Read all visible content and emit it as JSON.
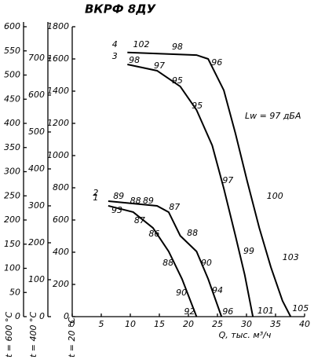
{
  "chart_data": {
    "type": "line",
    "title": "ВКРФ 8ДУ",
    "x_label": "Q, тыс. м³/ч",
    "y_label": "t = 20 °C",
    "annotation": "Lw = 97 дБА",
    "xlim": [
      0,
      40
    ],
    "xticks": [
      0,
      5,
      10,
      15,
      20,
      25,
      30,
      35,
      40
    ],
    "ylim": [
      0,
      1800
    ],
    "yticks": [
      0,
      200,
      400,
      600,
      800,
      1000,
      1200,
      1400,
      1600,
      1800
    ],
    "extra_axes": [
      {
        "label": "t = 600 °C",
        "ylim": [
          0,
          600
        ],
        "yticks": [
          0,
          50,
          100,
          150,
          200,
          250,
          300,
          350,
          400,
          450,
          500,
          550,
          600
        ]
      },
      {
        "label": "t = 400 °C",
        "ylim": [
          0,
          785
        ],
        "yticks": [
          0,
          100,
          200,
          300,
          400,
          500,
          600,
          700
        ]
      }
    ],
    "series": [
      {
        "name": "1",
        "color": "#000000",
        "x": [
          6.2,
          10.5,
          13.9,
          16.6,
          18.9,
          21.4
        ],
        "values": [
          688,
          649,
          551,
          405,
          234,
          0
        ],
        "point_labels": [
          {
            "x": 7.7,
            "y": 659,
            "label": 93
          },
          {
            "x": 11.6,
            "y": 595,
            "label": 87
          },
          {
            "x": 14.1,
            "y": 512,
            "label": 86
          },
          {
            "x": 16.5,
            "y": 332,
            "label": 88
          },
          {
            "x": 18.8,
            "y": 146,
            "label": 90
          },
          {
            "x": 20.2,
            "y": 29,
            "label": 92
          }
        ]
      },
      {
        "name": "2",
        "color": "#000000",
        "x": [
          6.2,
          14.6,
          16.6,
          18.6,
          21.4,
          23.4,
          25.7
        ],
        "values": [
          717,
          688,
          649,
          502,
          405,
          234,
          0
        ],
        "point_labels": [
          {
            "x": 8.0,
            "y": 746,
            "label": 89
          },
          {
            "x": 10.9,
            "y": 717,
            "label": 88
          },
          {
            "x": 13.1,
            "y": 717,
            "label": 89
          },
          {
            "x": 17.6,
            "y": 678,
            "label": 87
          },
          {
            "x": 20.7,
            "y": 517,
            "label": 88
          },
          {
            "x": 23.1,
            "y": 332,
            "label": 90
          },
          {
            "x": 25.0,
            "y": 161,
            "label": 94
          },
          {
            "x": 26.8,
            "y": 29,
            "label": 96
          }
        ]
      },
      {
        "name": "3",
        "color": "#000000",
        "x": [
          9.5,
          14.6,
          18.6,
          21.4,
          24.1,
          26.1,
          28.1,
          29.7,
          31.1
        ],
        "values": [
          1566,
          1527,
          1429,
          1283,
          1063,
          795,
          502,
          259,
          0
        ],
        "point_labels": [
          {
            "x": 10.7,
            "y": 1590,
            "label": 98
          },
          {
            "x": 15.0,
            "y": 1556,
            "label": 97
          },
          {
            "x": 18.1,
            "y": 1463,
            "label": 95
          },
          {
            "x": 21.5,
            "y": 1307,
            "label": 95
          },
          {
            "x": 26.8,
            "y": 844,
            "label": 97
          },
          {
            "x": 30.4,
            "y": 405,
            "label": 99
          },
          {
            "x": 33.3,
            "y": 34,
            "label": 101
          }
        ]
      },
      {
        "name": "4",
        "color": "#000000",
        "x": [
          9.5,
          21.4,
          23.4,
          26.1,
          28.1,
          30.1,
          32.2,
          34.2,
          36.2,
          37.6
        ],
        "values": [
          1640,
          1624,
          1600,
          1405,
          1137,
          844,
          551,
          307,
          98,
          0
        ],
        "point_labels": [
          {
            "x": 11.9,
            "y": 1688,
            "label": 102
          },
          {
            "x": 18.1,
            "y": 1673,
            "label": 98
          },
          {
            "x": 24.9,
            "y": 1576,
            "label": 96
          },
          {
            "x": 34.9,
            "y": 746,
            "label": 100
          },
          {
            "x": 37.6,
            "y": 366,
            "label": 103
          },
          {
            "x": 39.3,
            "y": 49,
            "label": 105
          }
        ]
      }
    ]
  }
}
